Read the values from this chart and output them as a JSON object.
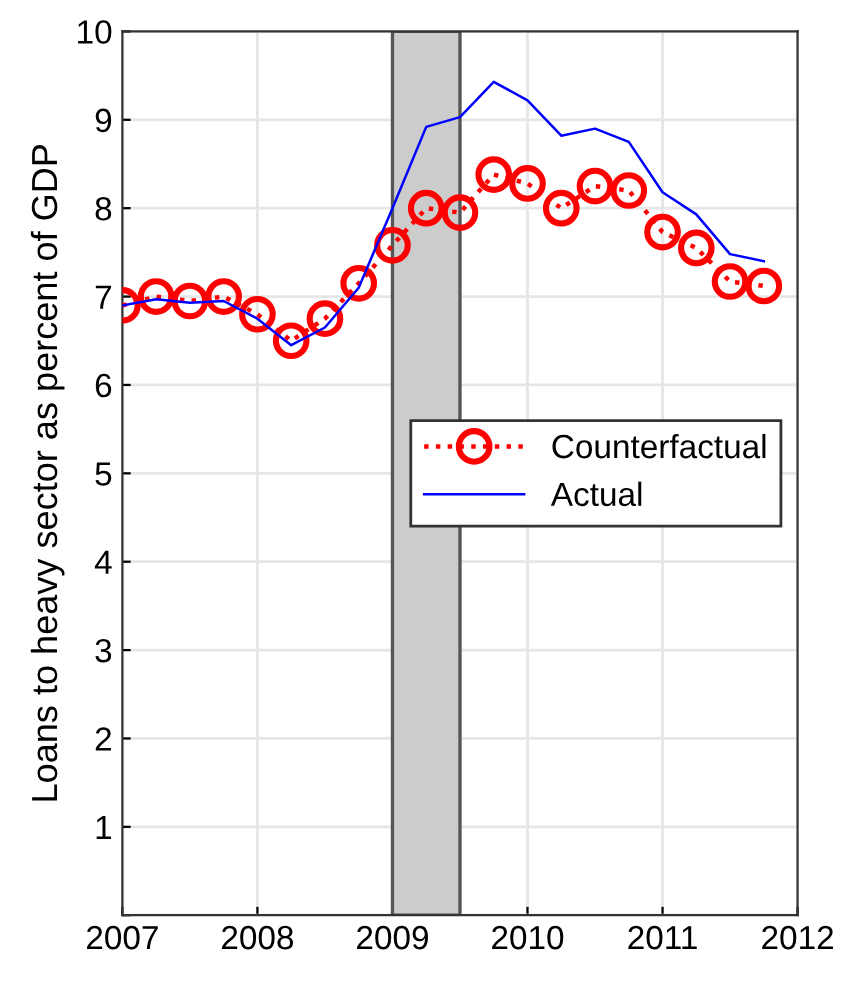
{
  "chart_data": {
    "type": "line",
    "ylabel": "Loans to heavy sector as percent of GDP",
    "x": [
      2007,
      2007.25,
      2007.5,
      2007.75,
      2008,
      2008.25,
      2008.5,
      2008.75,
      2009,
      2009.25,
      2009.5,
      2009.75,
      2010,
      2010.25,
      2010.5,
      2010.75,
      2011,
      2011.25,
      2011.5,
      2011.75
    ],
    "series": [
      {
        "name": "Counterfactual",
        "color": "#ff0000",
        "marker": "circle",
        "line_style": "dotted",
        "values": [
          6.9,
          7.0,
          6.95,
          7.0,
          6.8,
          6.5,
          6.75,
          7.15,
          7.58,
          8.0,
          7.95,
          8.38,
          8.28,
          8.0,
          8.25,
          8.2,
          7.73,
          7.55,
          7.17,
          7.12
        ]
      },
      {
        "name": "Actual",
        "color": "#0000ff",
        "marker": "none",
        "line_style": "solid",
        "values": [
          6.9,
          6.97,
          6.93,
          6.95,
          6.75,
          6.45,
          6.65,
          7.1,
          8.0,
          8.92,
          9.03,
          9.43,
          9.22,
          8.82,
          8.9,
          8.75,
          8.18,
          7.93,
          7.48,
          7.4
        ]
      }
    ],
    "bands": [
      {
        "axis": "x",
        "from": 2009,
        "to": 2009.5,
        "color": "#cccccc"
      }
    ],
    "xlim": [
      2007,
      2012
    ],
    "xticks": [
      2007,
      2008,
      2009,
      2010,
      2011,
      2012
    ],
    "ylim": [
      0,
      10
    ],
    "yticks": [
      {
        "value": 0,
        "label": null
      },
      1,
      2,
      3,
      4,
      5,
      6,
      7,
      8,
      9,
      10
    ],
    "grid": true,
    "legend": "center right"
  }
}
